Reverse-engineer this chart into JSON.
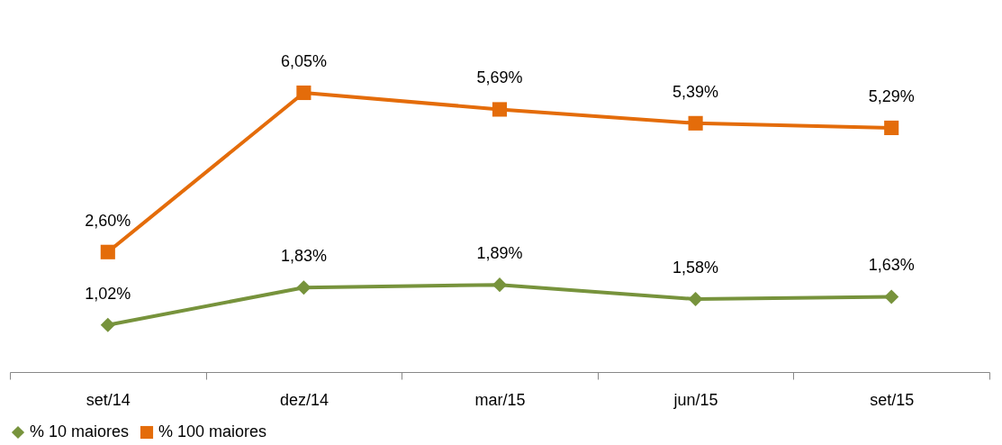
{
  "chart_data": {
    "type": "line",
    "categories": [
      "set/14",
      "dez/14",
      "mar/15",
      "jun/15",
      "set/15"
    ],
    "series": [
      {
        "name": "% 10 maiores",
        "color": "#77933c",
        "marker": "diamond",
        "values": [
          1.02,
          1.83,
          1.89,
          1.58,
          1.63
        ],
        "value_labels": [
          "1,02%",
          "1,83%",
          "1,89%",
          "1,58%",
          "1,63%"
        ]
      },
      {
        "name": "% 100 maiores",
        "color": "#e46c0a",
        "marker": "square",
        "values": [
          2.6,
          6.05,
          5.69,
          5.39,
          5.29
        ],
        "value_labels": [
          "2,60%",
          "6,05%",
          "5,69%",
          "5,39%",
          "5,29%"
        ]
      }
    ],
    "tick_labels": "x",
    "grid": false,
    "legend": "bottom",
    "line_style": "solid"
  }
}
